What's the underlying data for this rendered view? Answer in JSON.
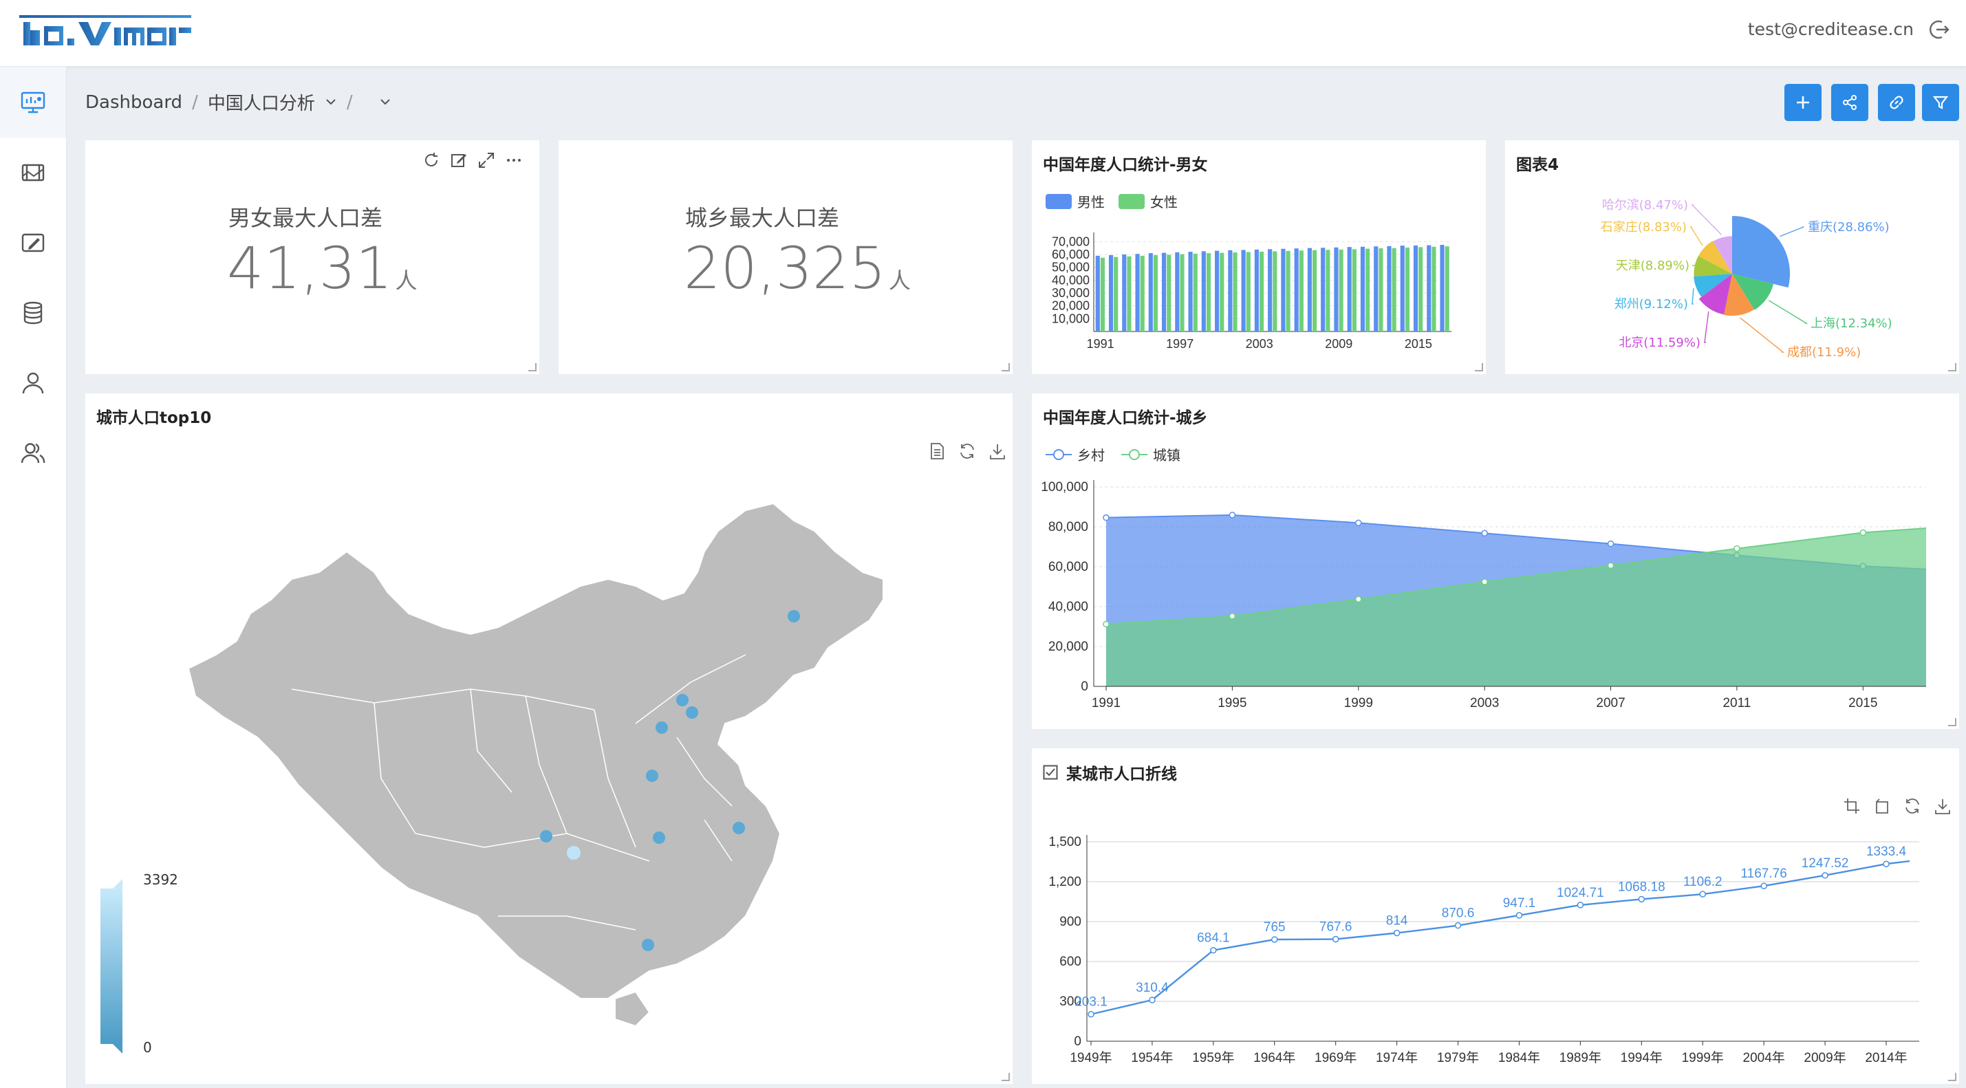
{
  "header": {
    "logo_text": "davinci",
    "user_email": "test@creditease.cn"
  },
  "sidebar": {
    "items": [
      {
        "name": "dashboard-icon"
      },
      {
        "name": "display-icon"
      },
      {
        "name": "widget-icon"
      },
      {
        "name": "database-icon"
      },
      {
        "name": "user-icon"
      },
      {
        "name": "users-icon"
      }
    ]
  },
  "breadcrumb": {
    "root": "Dashboard",
    "separator": "/",
    "current": "中国人口分析"
  },
  "toolbar": {
    "buttons": [
      "plus-icon",
      "share-icon",
      "link-icon",
      "filter-icon"
    ],
    "accent": "#2a8ae6"
  },
  "kpi_gender": {
    "label": "男女最大人口差",
    "value": "41,31",
    "unit": "人"
  },
  "kpi_urban": {
    "label": "城乡最大人口差",
    "value": "20,325",
    "unit": "人"
  },
  "chart_gender": {
    "title": "中国年度人口统计-男女",
    "legend": [
      "男性",
      "女性"
    ]
  },
  "chart_pie": {
    "title": "图表4"
  },
  "map_card": {
    "title": "城市人口top10",
    "legend_max": "3392",
    "legend_min": "0"
  },
  "chart_urban": {
    "title": "中国年度人口统计-城乡",
    "legend": [
      "乡村",
      "城镇"
    ]
  },
  "chart_city": {
    "title": "某城市人口折线"
  },
  "chart_data": [
    {
      "type": "bar",
      "title": "中国年度人口统计-男女",
      "x_ticks": [
        "1991",
        "1997",
        "2003",
        "2009",
        "2015"
      ],
      "y_ticks": [
        "10,000",
        "20,000",
        "30,000",
        "40,000",
        "50,000",
        "60,000",
        "70,000"
      ],
      "ylim": [
        0,
        75000
      ],
      "categories": [
        "1991",
        "1992",
        "1993",
        "1994",
        "1995",
        "1996",
        "1997",
        "1998",
        "1999",
        "2000",
        "2001",
        "2002",
        "2003",
        "2004",
        "2005",
        "2006",
        "2007",
        "2008",
        "2009",
        "2010",
        "2011",
        "2012",
        "2013",
        "2014",
        "2015",
        "2016",
        "2017"
      ],
      "series": [
        {
          "name": "男性",
          "color": "#5b8ff0",
          "values": [
            59000,
            59500,
            60000,
            60400,
            61000,
            61300,
            61700,
            62100,
            62500,
            62900,
            63300,
            63500,
            63800,
            64100,
            64400,
            64700,
            65000,
            65200,
            65500,
            65800,
            66000,
            66300,
            66500,
            66900,
            67000,
            67200,
            67500
          ]
        },
        {
          "name": "女性",
          "color": "#6fd07a",
          "values": [
            57500,
            58000,
            58500,
            59000,
            59500,
            59800,
            60200,
            60600,
            61000,
            61300,
            61600,
            61900,
            62200,
            62500,
            62800,
            63100,
            63400,
            63600,
            63800,
            64100,
            64500,
            64800,
            65000,
            65400,
            65700,
            66000,
            66300
          ]
        }
      ]
    },
    {
      "type": "pie",
      "title": "图表4",
      "slices": [
        {
          "label": "重庆(28.86%)",
          "value": 28.86,
          "color": "#5b9bf0"
        },
        {
          "label": "上海(12.34%)",
          "value": 12.34,
          "color": "#4cc67a"
        },
        {
          "label": "成都(11.9%)",
          "value": 11.9,
          "color": "#f79646"
        },
        {
          "label": "北京(11.59%)",
          "value": 11.59,
          "color": "#c94ad8"
        },
        {
          "label": "郑州(9.12%)",
          "value": 9.12,
          "color": "#3bb7e8"
        },
        {
          "label": "天津(8.89%)",
          "value": 8.89,
          "color": "#a5c93c"
        },
        {
          "label": "石家庄(8.83%)",
          "value": 8.83,
          "color": "#f4c342"
        },
        {
          "label": "哈尔滨(8.47%)",
          "value": 8.47,
          "color": "#d9a8f2"
        }
      ]
    },
    {
      "type": "area",
      "title": "中国年度人口统计-城乡",
      "x": [
        1991,
        1995,
        1999,
        2003,
        2007,
        2011,
        2015,
        2017
      ],
      "x_ticks": [
        "1991",
        "1995",
        "1999",
        "2003",
        "2007",
        "2011",
        "2015"
      ],
      "y_ticks": [
        "0",
        "20,000",
        "40,000",
        "60,000",
        "80,000",
        "100,000"
      ],
      "ylim": [
        0,
        100000
      ],
      "series": [
        {
          "name": "乡村",
          "color": "#5b8ff0",
          "values": [
            84600,
            85900,
            82000,
            76800,
            71500,
            65700,
            60300,
            58700
          ]
        },
        {
          "name": "城镇",
          "color": "#6fcf8a",
          "values": [
            31200,
            35200,
            43700,
            52400,
            60600,
            69100,
            77100,
            79300
          ]
        }
      ]
    },
    {
      "type": "line",
      "title": "某城市人口折线",
      "x_ticks": [
        "1949年",
        "1954年",
        "1959年",
        "1964年",
        "1969年",
        "1974年",
        "1979年",
        "1984年",
        "1989年",
        "1994年",
        "1999年",
        "2004年",
        "2009年",
        "2014年"
      ],
      "y_ticks": [
        "0",
        "300",
        "600",
        "900",
        "1,200",
        "1,500"
      ],
      "ylim": [
        0,
        1500
      ],
      "x": [
        1949,
        1954,
        1959,
        1964,
        1969,
        1974,
        1979,
        1984,
        1989,
        1994,
        1999,
        2004,
        2009,
        2014
      ],
      "values": [
        203.1,
        310.4,
        684.1,
        765,
        767.6,
        814,
        870.6,
        947.1,
        1024.71,
        1068.18,
        1106.2,
        1167.76,
        1247.52,
        1333.4
      ],
      "labels": [
        "203.1",
        "310.4",
        "684.1",
        "765",
        "767.6",
        "814",
        "870.6",
        "947.1",
        "1024.71",
        "1068.18",
        "1106.2",
        "1167.76",
        "1247.52",
        "1333.4"
      ]
    }
  ]
}
